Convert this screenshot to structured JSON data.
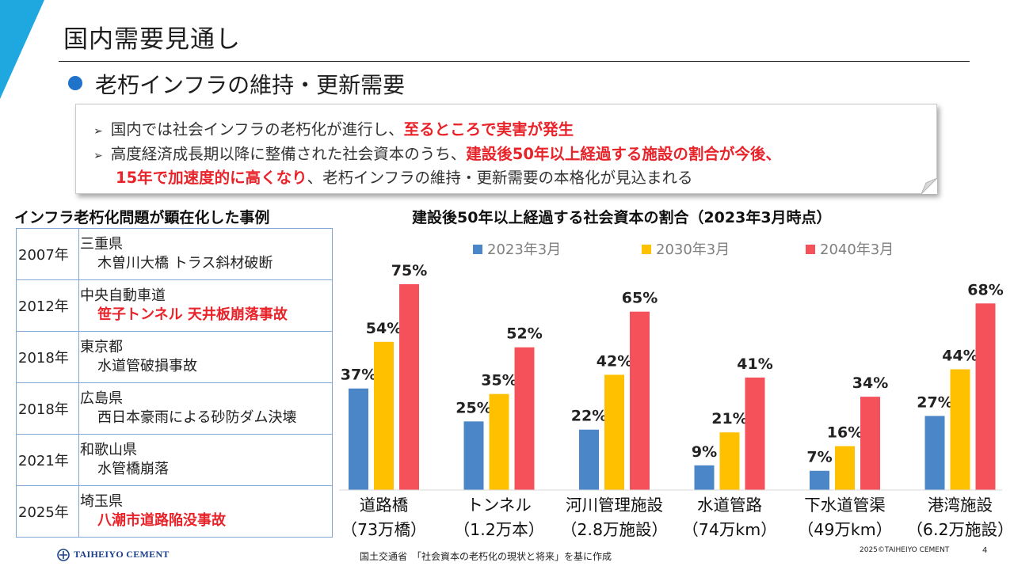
{
  "slide": {
    "title": "国内需要見通し",
    "subtitle": "老朽インフラの維持・更新需要",
    "accent_color": "#1fa8e0"
  },
  "callout": {
    "line1_plain": "国内では社会インフラの老朽化が進行し、",
    "line1_red": "至るところで実害が発生",
    "line2_plain": "高度経済成長期以降に整備された社会資本のうち、",
    "line2_red": "建設後50年以上経過する施設の割合が今後、",
    "line3_red": "15年で加速度的に高くなり",
    "line3_plain": "、老朽インフラの維持・更新需要の本格化が見込まれる",
    "marker_icon": "triangle-right-icon"
  },
  "cases": {
    "heading": "インフラ老朽化問題が顕在化した事例",
    "rows": [
      {
        "year": "2007年",
        "place": "三重県",
        "event": "木曽川大橋 トラス斜材破断",
        "highlight": false
      },
      {
        "year": "2012年",
        "place": "中央自動車道",
        "event": "笹子トンネル 天井板崩落事故",
        "highlight": true
      },
      {
        "year": "2018年",
        "place": "東京都",
        "event": "水道管破損事故",
        "highlight": false
      },
      {
        "year": "2018年",
        "place": "広島県",
        "event": "西日本豪雨による砂防ダム決壊",
        "highlight": false
      },
      {
        "year": "2021年",
        "place": "和歌山県",
        "event": "水管橋崩落",
        "highlight": false
      },
      {
        "year": "2025年",
        "place": "埼玉県",
        "event": "八潮市道路陥没事故",
        "highlight": true
      }
    ]
  },
  "chart_data": {
    "type": "bar",
    "title": "建設後50年以上経過する社会資本の割合（2023年3月時点）",
    "categories": [
      [
        "道路橋",
        "（73万橋）"
      ],
      [
        "トンネル",
        "（1.2万本）"
      ],
      [
        "河川管理施設",
        "（2.8万施設）"
      ],
      [
        "水道管路",
        "（74万km）"
      ],
      [
        "下水道管渠",
        "（49万km）"
      ],
      [
        "港湾施設",
        "（6.2万施設）"
      ]
    ],
    "series": [
      {
        "name": "2023年3月",
        "color": "#4a86c8",
        "values": [
          37,
          25,
          22,
          9,
          7,
          27
        ]
      },
      {
        "name": "2030年3月",
        "color": "#ffc000",
        "values": [
          54,
          35,
          42,
          21,
          16,
          44
        ]
      },
      {
        "name": "2040年3月",
        "color": "#f4515a",
        "values": [
          75,
          52,
          65,
          41,
          34,
          68
        ]
      }
    ],
    "value_suffix": "%",
    "ylim": [
      0,
      75
    ],
    "grid": false,
    "legend_position": "top"
  },
  "footer": {
    "logo_text": "TAIHEIYO CEMENT",
    "source": "国土交通省　「社会資本の老朽化の現状と将来」を基に作成",
    "copyright": "2025©TAIHEIYO CEMENT",
    "page_number": "4"
  }
}
